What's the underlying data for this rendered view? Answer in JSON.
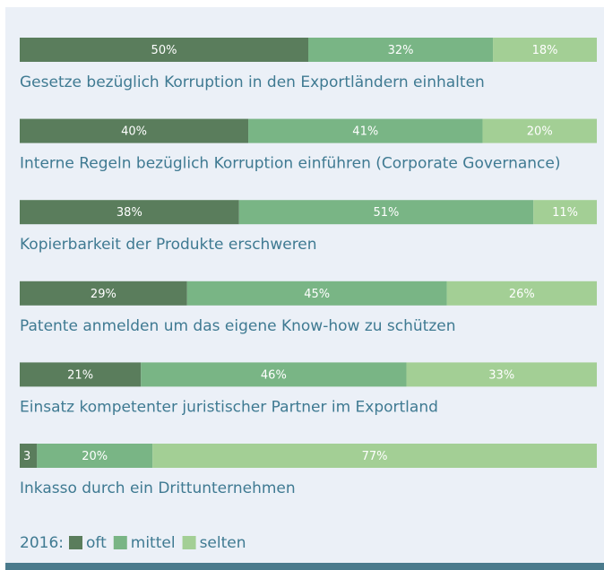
{
  "chart_data": {
    "type": "stacked-bar-horizontal",
    "categories": [
      "Gesetze bezüglich Korruption in den Exportländern einhalten",
      "Interne Regeln bezüglich Korruption einführen (Corporate Governance)",
      "Kopierbarkeit der Produkte erschweren",
      "Patente anmelden um das eigene Know-how zu schützen",
      "Einsatz kompetenter juristischer Partner im Exportland",
      "Inkasso durch ein Drittunternehmen"
    ],
    "series": [
      {
        "name": "oft",
        "color": "#5a7d5c",
        "values": [
          50,
          40,
          38,
          29,
          21,
          3
        ],
        "value_labels": [
          "50%",
          "40%",
          "38%",
          "29%",
          "21%",
          "3"
        ]
      },
      {
        "name": "mittel",
        "color": "#79b585",
        "values": [
          32,
          41,
          51,
          45,
          46,
          20
        ],
        "value_labels": [
          "32%",
          "41%",
          "51%",
          "45%",
          "46%",
          "20%"
        ]
      },
      {
        "name": "selten",
        "color": "#a3cf95",
        "values": [
          18,
          20,
          11,
          26,
          33,
          77
        ],
        "value_labels": [
          "18%",
          "20%",
          "11%",
          "26%",
          "33%",
          "77%"
        ]
      }
    ],
    "legend_title": "2016:"
  }
}
